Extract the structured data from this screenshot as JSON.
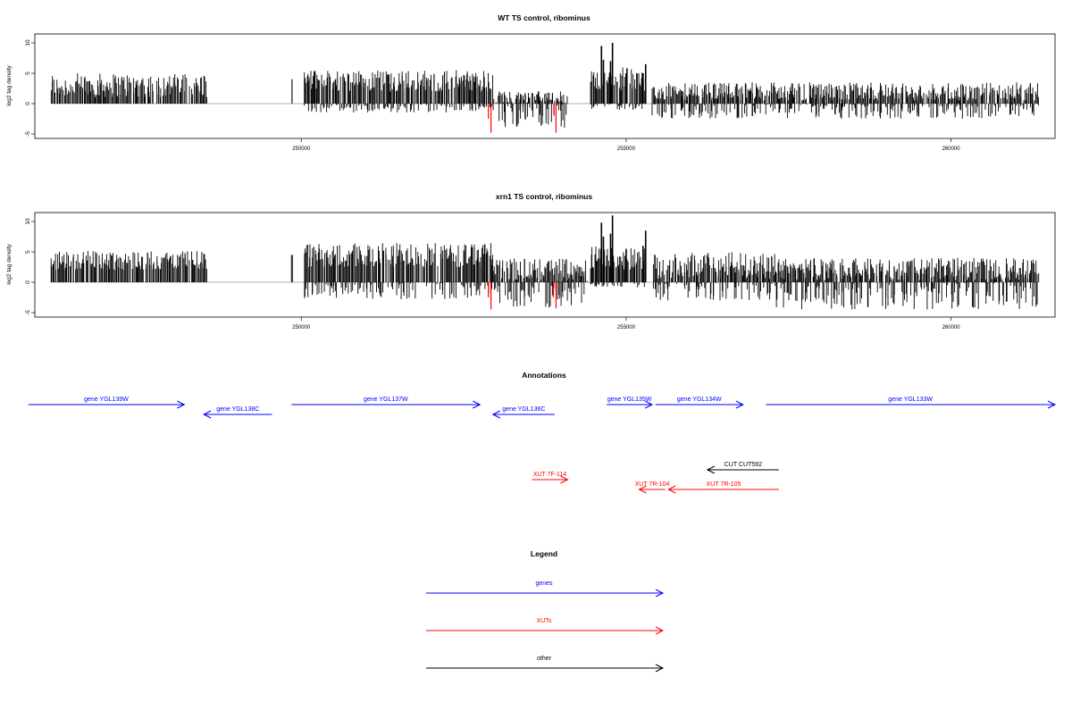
{
  "colors": {
    "genes": "#0000ff",
    "xuts": "#ff0000",
    "other": "#000000",
    "bars": "#000000",
    "highlight": "#ff0000",
    "baseline": "#999999"
  },
  "chart_data": [
    {
      "type": "bar",
      "title": "WT TS control, ribominus",
      "xlabel": "",
      "ylabel": "log2 tag density",
      "xlim": [
        245900,
        261600
      ],
      "ylim": [
        -5,
        11
      ],
      "x_ticks": [
        250000,
        255000,
        260000
      ],
      "y_ticks": [
        -5,
        0,
        5,
        10
      ],
      "segments": [
        {
          "x": [
            246150,
            248550
          ],
          "up": [
            1,
            5
          ],
          "down": [
            0,
            0
          ]
        },
        {
          "x": [
            249850,
            249870
          ],
          "up": [
            4,
            4
          ],
          "down": [
            0,
            0
          ]
        },
        {
          "x": [
            250050,
            252950
          ],
          "up": [
            2,
            5.5
          ],
          "down": [
            0,
            1.5
          ]
        },
        {
          "x": [
            252950,
            254100
          ],
          "up": [
            0,
            2
          ],
          "down": [
            0,
            4
          ]
        },
        {
          "x": [
            254450,
            255300
          ],
          "up": [
            2,
            6
          ],
          "down": [
            0,
            1
          ]
        },
        {
          "x": [
            255400,
            261350
          ],
          "up": [
            0.5,
            3.5
          ],
          "down": [
            0,
            2.5
          ]
        }
      ],
      "peaks_up": [
        {
          "x": 254620,
          "y": 9.5
        },
        {
          "x": 254650,
          "y": 7.2
        },
        {
          "x": 254790,
          "y": 10
        },
        {
          "x": 254760,
          "y": 7
        },
        {
          "x": 255300,
          "y": 6.5
        },
        {
          "x": 255260,
          "y": 5
        },
        {
          "x": 255000,
          "y": 5
        },
        {
          "x": 253500,
          "y": 1
        },
        {
          "x": 253650,
          "y": 2
        }
      ],
      "peaks_down_red": [
        {
          "x": 252920,
          "y": -4.8
        },
        {
          "x": 252880,
          "y": -2.5
        },
        {
          "x": 253920,
          "y": -4.8
        },
        {
          "x": 253890,
          "y": -2
        }
      ]
    },
    {
      "type": "bar",
      "title": "xrn1 TS control, ribominus",
      "xlabel": "",
      "ylabel": "log2 tag density",
      "xlim": [
        245900,
        261600
      ],
      "ylim": [
        -5,
        11
      ],
      "x_ticks": [
        250000,
        255000,
        260000
      ],
      "y_ticks": [
        -5,
        0,
        5,
        10
      ],
      "segments": [
        {
          "x": [
            246150,
            248550
          ],
          "up": [
            2,
            5.2
          ],
          "down": [
            0,
            0
          ]
        },
        {
          "x": [
            249850,
            249870
          ],
          "up": [
            4.5,
            4.5
          ],
          "down": [
            0,
            0
          ]
        },
        {
          "x": [
            250050,
            252950
          ],
          "up": [
            2.5,
            6.5
          ],
          "down": [
            0,
            2.8
          ]
        },
        {
          "x": [
            252950,
            254400
          ],
          "up": [
            0,
            4
          ],
          "down": [
            0.5,
            4.2
          ]
        },
        {
          "x": [
            254450,
            255300
          ],
          "up": [
            2,
            6
          ],
          "down": [
            0,
            1
          ]
        },
        {
          "x": [
            255400,
            257300
          ],
          "up": [
            0.5,
            5
          ],
          "down": [
            0,
            3
          ]
        },
        {
          "x": [
            257300,
            261350
          ],
          "up": [
            0.3,
            4
          ],
          "down": [
            0,
            4.5
          ]
        }
      ],
      "peaks_up": [
        {
          "x": 254620,
          "y": 9.8
        },
        {
          "x": 254650,
          "y": 7.5
        },
        {
          "x": 254790,
          "y": 11
        },
        {
          "x": 254760,
          "y": 8
        },
        {
          "x": 255300,
          "y": 8.5
        },
        {
          "x": 255260,
          "y": 6
        },
        {
          "x": 255000,
          "y": 5.5
        }
      ],
      "peaks_down_red": [
        {
          "x": 252920,
          "y": -4.5
        },
        {
          "x": 252880,
          "y": -2.5
        },
        {
          "x": 253920,
          "y": -4.3
        },
        {
          "x": 253880,
          "y": -2.5
        }
      ]
    }
  ],
  "annotations": {
    "title": "Annotations",
    "features": [
      {
        "label": "gene YGL139W",
        "start": 245800,
        "end": 248200,
        "kind": "gene",
        "row": 1
      },
      {
        "label": "gene YGL138C",
        "start": 248500,
        "end": 249550,
        "kind": "gene",
        "row": 2
      },
      {
        "label": "gene YGL137W",
        "start": 249850,
        "end": 252750,
        "kind": "gene",
        "row": 1
      },
      {
        "label": "gene YGL136C",
        "start": 252950,
        "end": 253900,
        "kind": "gene",
        "row": 2
      },
      {
        "label": "gene YGL135W",
        "start": 254700,
        "end": 255400,
        "kind": "gene",
        "row": 1
      },
      {
        "label": "gene YGL134W",
        "start": 255450,
        "end": 256800,
        "kind": "gene",
        "row": 1
      },
      {
        "label": "gene YGL133W",
        "start": 257150,
        "end": 261600,
        "kind": "gene",
        "row": 1
      },
      {
        "label": "CUT CUT592",
        "start": 256250,
        "end": 257350,
        "kind": "other",
        "row": 3
      },
      {
        "label": "XUT 7F-114",
        "start": 253550,
        "end": 254100,
        "kind": "xut",
        "row": 4
      },
      {
        "label": "XUT 7R-104",
        "start": 255200,
        "end": 255600,
        "kind": "xut",
        "row": 5
      },
      {
        "label": "XUT 7R-105",
        "start": 255650,
        "end": 257350,
        "kind": "xut",
        "row": 5
      }
    ]
  },
  "legend": {
    "title": "Legend",
    "entries": [
      {
        "label": "genes",
        "kind": "gene"
      },
      {
        "label": "XUTs",
        "kind": "xut"
      },
      {
        "label": "other",
        "kind": "other"
      }
    ]
  }
}
